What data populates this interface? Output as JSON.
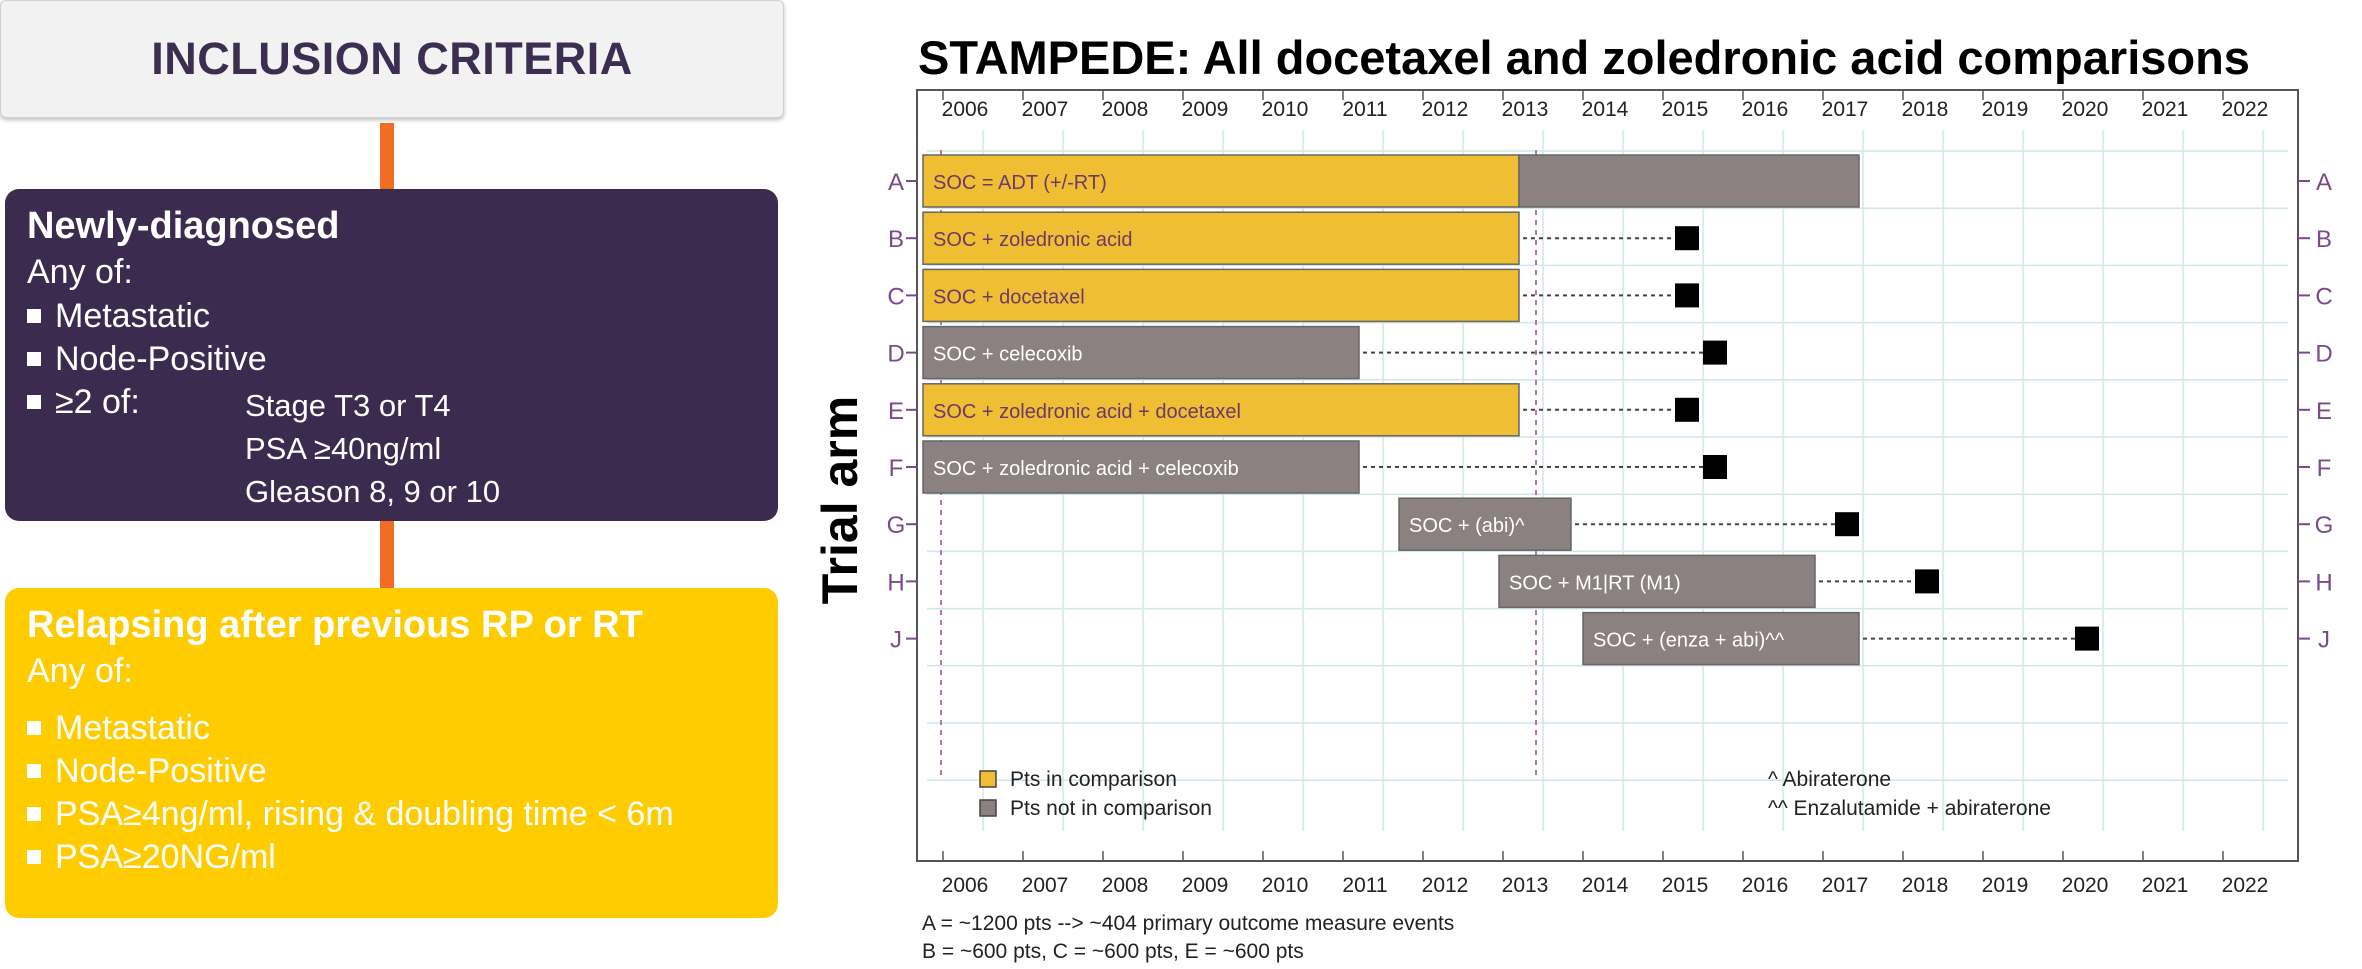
{
  "left": {
    "header": "INCLUSION CRITERIA",
    "new": {
      "title": "Newly-diagnosed",
      "any_of": "Any of:",
      "items": [
        "Metastatic",
        "Node-Positive",
        "≥2 of:"
      ],
      "sub_items": [
        "Stage T3 or T4",
        "PSA ≥40ng/ml",
        "Gleason 8, 9 or 10"
      ]
    },
    "relapse": {
      "title": "Relapsing after previous RP or RT",
      "any_of": "Any of:",
      "items": [
        "Metastatic",
        "Node-Positive",
        "PSA≥4ng/ml, rising & doubling time < 6m",
        "PSA≥20NG/ml"
      ]
    },
    "colors": {
      "header_text": "#3b2e50",
      "panel_new": "#3b2b4e",
      "panel_relapse": "#ffcc00",
      "connector": "#f26d21"
    }
  },
  "chart_data": {
    "type": "gantt",
    "title": "STAMPEDE: All docetaxel and zoledronic acid comparisons",
    "ylabel": "Trial arm",
    "years": [
      2006,
      2007,
      2008,
      2009,
      2010,
      2011,
      2012,
      2013,
      2014,
      2015,
      2016,
      2017,
      2018,
      2019,
      2020,
      2021,
      2022
    ],
    "arms": [
      {
        "arm": "A",
        "label": "SOC = ADT (+/-RT)",
        "start": 2005.75,
        "split": 2013.2,
        "end": 2017.45,
        "endpoint": null
      },
      {
        "arm": "B",
        "label": "SOC + zoledronic acid",
        "start": 2005.75,
        "end": 2013.2,
        "in_comparison": true,
        "endpoint": 2015.3
      },
      {
        "arm": "C",
        "label": "SOC + docetaxel",
        "start": 2005.75,
        "end": 2013.2,
        "in_comparison": true,
        "endpoint": 2015.3
      },
      {
        "arm": "D",
        "label": "SOC + celecoxib",
        "start": 2005.75,
        "end": 2011.2,
        "in_comparison": false,
        "endpoint": 2015.65
      },
      {
        "arm": "E",
        "label": "SOC + zoledronic acid + docetaxel",
        "start": 2005.75,
        "end": 2013.2,
        "in_comparison": true,
        "endpoint": 2015.3
      },
      {
        "arm": "F",
        "label": "SOC + zoledronic acid + celecoxib",
        "start": 2005.75,
        "end": 2011.2,
        "in_comparison": false,
        "endpoint": 2015.65
      },
      {
        "arm": "G",
        "label": "SOC + (abi)^",
        "start": 2011.7,
        "end": 2013.85,
        "in_comparison": false,
        "endpoint": 2017.3
      },
      {
        "arm": "H",
        "label": "SOC + M1|RT (M1)",
        "start": 2012.95,
        "end": 2016.9,
        "in_comparison": false,
        "endpoint": 2018.3
      },
      {
        "arm": "J",
        "label": "SOC + (enza + abi)^^",
        "start": 2014.0,
        "end": 2017.45,
        "in_comparison": false,
        "endpoint": 2020.3
      }
    ],
    "legend": [
      "Pts in comparison",
      "Pts not in comparison"
    ],
    "notes": [
      "^ Abiraterone",
      "^^ Enzalutamide + abiraterone"
    ],
    "footnotes": [
      "A = ~1200 pts --> ~404 primary outcome measure events",
      "B = ~600 pts, C = ~600 pts, E = ~600 pts"
    ],
    "colors": {
      "in_comparison": "#f0be32",
      "not_in_comparison": "#8c8181",
      "grid": "#cfe7e7",
      "arm_label": "#7a4a8a",
      "bar_text_in": "#6b3a6b",
      "bar_text_out": "#ffffff"
    }
  }
}
